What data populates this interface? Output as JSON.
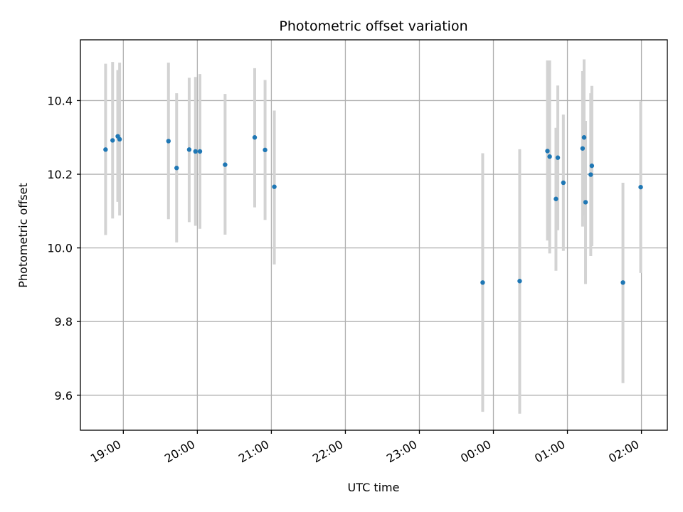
{
  "chart_data": {
    "type": "scatter",
    "title": "Photometric offset variation",
    "xlabel": "UTC time",
    "ylabel": "Photometric offset",
    "x_tick_labels": [
      "19:00",
      "20:00",
      "21:00",
      "22:00",
      "23:00",
      "00:00",
      "01:00",
      "02:00"
    ],
    "x_ticks_hours": [
      19,
      20,
      21,
      22,
      23,
      24,
      25,
      26
    ],
    "xlim_hours": [
      18.42,
      26.35
    ],
    "ylim": [
      9.505,
      10.565
    ],
    "y_ticks": [
      9.6,
      9.8,
      10.0,
      10.2,
      10.4
    ],
    "y_tick_labels": [
      "9.6",
      "9.8",
      "10.0",
      "10.2",
      "10.4"
    ],
    "grid": true,
    "colors": {
      "point": "#1f77b4",
      "errorbar": "#d3d3d3",
      "grid": "#b0b0b0"
    },
    "points": [
      {
        "t": 18.76,
        "y": 10.267,
        "lo": 10.035,
        "hi": 10.5
      },
      {
        "t": 18.855,
        "y": 10.292,
        "lo": 10.08,
        "hi": 10.505
      },
      {
        "t": 18.925,
        "y": 10.303,
        "lo": 10.125,
        "hi": 10.483
      },
      {
        "t": 18.95,
        "y": 10.295,
        "lo": 10.088,
        "hi": 10.503
      },
      {
        "t": 19.61,
        "y": 10.29,
        "lo": 10.078,
        "hi": 10.503
      },
      {
        "t": 19.72,
        "y": 10.217,
        "lo": 10.015,
        "hi": 10.42
      },
      {
        "t": 19.89,
        "y": 10.267,
        "lo": 10.07,
        "hi": 10.462
      },
      {
        "t": 19.975,
        "y": 10.262,
        "lo": 10.06,
        "hi": 10.464
      },
      {
        "t": 20.035,
        "y": 10.262,
        "lo": 10.052,
        "hi": 10.472
      },
      {
        "t": 20.375,
        "y": 10.226,
        "lo": 10.036,
        "hi": 10.418
      },
      {
        "t": 20.775,
        "y": 10.3,
        "lo": 10.11,
        "hi": 10.488
      },
      {
        "t": 20.915,
        "y": 10.266,
        "lo": 10.076,
        "hi": 10.456
      },
      {
        "t": 21.04,
        "y": 10.166,
        "lo": 9.955,
        "hi": 10.373
      },
      {
        "t": 23.855,
        "y": 9.906,
        "lo": 9.555,
        "hi": 10.257
      },
      {
        "t": 24.355,
        "y": 9.91,
        "lo": 9.55,
        "hi": 10.268
      },
      {
        "t": 24.73,
        "y": 10.263,
        "lo": 10.02,
        "hi": 10.509
      },
      {
        "t": 24.76,
        "y": 10.248,
        "lo": 9.985,
        "hi": 10.509
      },
      {
        "t": 24.845,
        "y": 10.133,
        "lo": 9.938,
        "hi": 10.326
      },
      {
        "t": 24.87,
        "y": 10.245,
        "lo": 10.048,
        "hi": 10.441
      },
      {
        "t": 24.945,
        "y": 10.177,
        "lo": 9.992,
        "hi": 10.362
      },
      {
        "t": 25.205,
        "y": 10.27,
        "lo": 10.058,
        "hi": 10.48
      },
      {
        "t": 25.225,
        "y": 10.3,
        "lo": 10.087,
        "hi": 10.512
      },
      {
        "t": 25.245,
        "y": 10.124,
        "lo": 9.902,
        "hi": 10.345
      },
      {
        "t": 25.315,
        "y": 10.199,
        "lo": 9.978,
        "hi": 10.42
      },
      {
        "t": 25.33,
        "y": 10.223,
        "lo": 10.005,
        "hi": 10.44
      },
      {
        "t": 25.75,
        "y": 9.906,
        "lo": 9.633,
        "hi": 10.177
      },
      {
        "t": 25.99,
        "y": 10.165,
        "lo": 9.932,
        "hi": 10.398
      }
    ]
  }
}
